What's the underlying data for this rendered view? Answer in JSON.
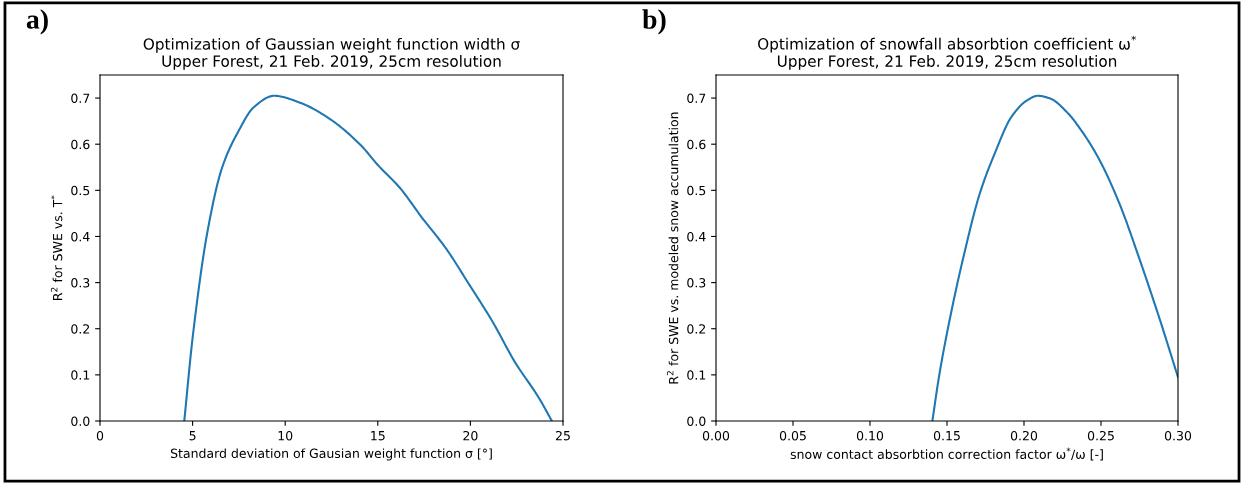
{
  "chart_data": [
    {
      "type": "line",
      "title": "Optimization of Gaussian weight function width σ\nUpper Forest, 21 Feb. 2019, 25cm resolution",
      "xlabel": "Standard deviation of Gausian weight function σ [°]",
      "ylabel": "R$^{2}$ for SWE vs. T$^{*}$",
      "annotations": [
        "a)"
      ],
      "series": [
        {
          "color": "#1f77b4",
          "x": [
            4.55,
            5.0,
            5.8,
            6.6,
            7.5,
            8.3,
            9.4,
            10.8,
            12.4,
            14.1,
            15.0,
            16.2,
            17.4,
            18.7,
            19.9,
            21.2,
            22.4,
            23.7,
            24.4
          ],
          "values": [
            0.0,
            0.18,
            0.41,
            0.55,
            0.63,
            0.68,
            0.705,
            0.69,
            0.655,
            0.597,
            0.555,
            0.505,
            0.44,
            0.373,
            0.298,
            0.215,
            0.128,
            0.05,
            0.0
          ]
        }
      ],
      "xlim": [
        0,
        25
      ],
      "xticks": [
        0,
        5,
        10,
        15,
        20,
        25
      ],
      "ylim": [
        0,
        0.75
      ],
      "yticks": [
        {
          "value": 0,
          "label": "0.0"
        },
        0.1,
        0.2,
        0.3,
        0.4,
        0.5,
        0.6,
        0.7
      ],
      "grid": false
    },
    {
      "type": "line",
      "title": "Optimization of snowfall absorbtion coefficient ω$^{*}$\nUpper Forest, 21 Feb. 2019, 25cm resolution",
      "xlabel": "snow contact absorbtion correction factor ω$^{*}$/ω [-]",
      "ylabel": "R$^{2}$ for SWE vs. modeled snow accumulation",
      "annotations": [
        "b)"
      ],
      "series": [
        {
          "color": "#1f77b4",
          "x": [
            0.1405,
            0.145,
            0.153,
            0.161,
            0.171,
            0.181,
            0.192,
            0.202,
            0.209,
            0.217,
            0.228,
            0.238,
            0.249,
            0.262,
            0.275,
            0.288,
            0.3
          ],
          "values": [
            0.0,
            0.1,
            0.24,
            0.36,
            0.49,
            0.58,
            0.66,
            0.695,
            0.705,
            0.699,
            0.669,
            0.626,
            0.566,
            0.471,
            0.351,
            0.222,
            0.095
          ]
        }
      ],
      "xlim": [
        0,
        0.3
      ],
      "xticks": [
        {
          "value": 0,
          "label": "0.00"
        },
        0.05,
        {
          "value": 0.1,
          "label": "0.10"
        },
        0.15,
        {
          "value": 0.2,
          "label": "0.20"
        },
        0.25,
        {
          "value": 0.3,
          "label": "0.30"
        }
      ],
      "ylim": [
        0,
        0.75
      ],
      "yticks": [
        {
          "value": 0,
          "label": "0.0"
        },
        0.1,
        0.2,
        0.3,
        0.4,
        0.5,
        0.6,
        0.7
      ],
      "grid": false
    }
  ]
}
